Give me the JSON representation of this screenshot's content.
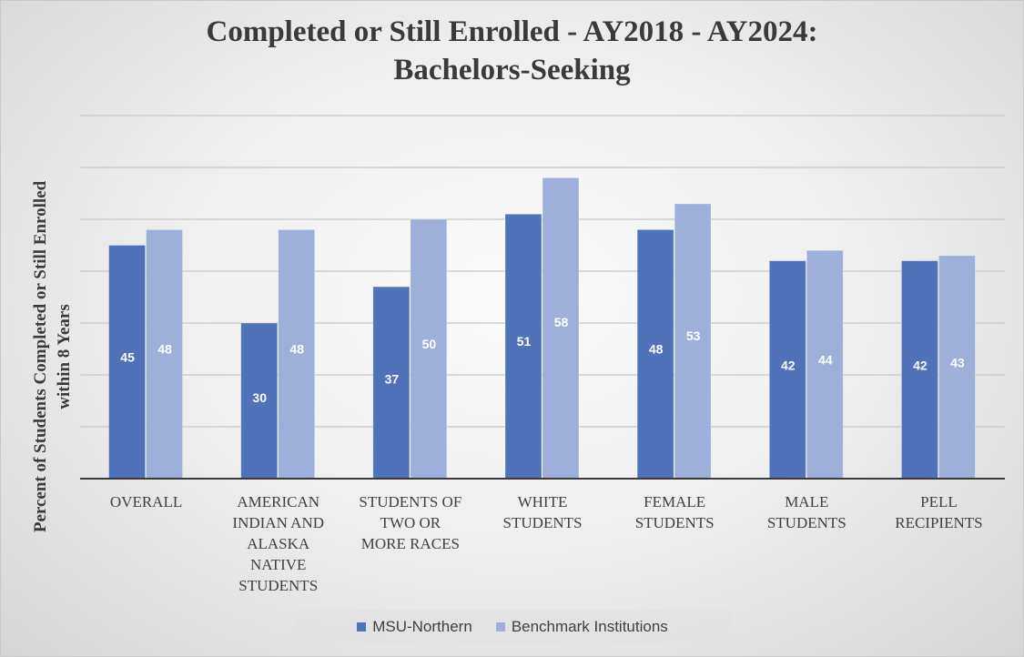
{
  "chart_data": {
    "type": "bar",
    "title": [
      "Completed or Still Enrolled - AY2018 - AY2024:",
      "Bachelors-Seeking"
    ],
    "ylabel": [
      "Percent of  Students Completed or Still Enrolled",
      "within 8 Years"
    ],
    "xlabel": "",
    "categories": [
      [
        "OVERALL"
      ],
      [
        "AMERICAN",
        "INDIAN AND",
        "ALASKA",
        "NATIVE",
        "STUDENTS"
      ],
      [
        "STUDENTS OF",
        "TWO OR",
        "MORE RACES"
      ],
      [
        "WHITE",
        "STUDENTS"
      ],
      [
        "FEMALE",
        "STUDENTS"
      ],
      [
        "MALE",
        "STUDENTS"
      ],
      [
        "PELL",
        "RECIPIENTS"
      ]
    ],
    "series": [
      {
        "name": "MSU-Northern",
        "color": "#4f72b8",
        "values": [
          45,
          30,
          37,
          51,
          48,
          42,
          42
        ]
      },
      {
        "name": "Benchmark Institutions",
        "color": "#9eb0da",
        "values": [
          48,
          48,
          50,
          58,
          53,
          44,
          43
        ]
      }
    ],
    "ylim": [
      0,
      70
    ],
    "grid": true,
    "legend_position": "bottom"
  }
}
